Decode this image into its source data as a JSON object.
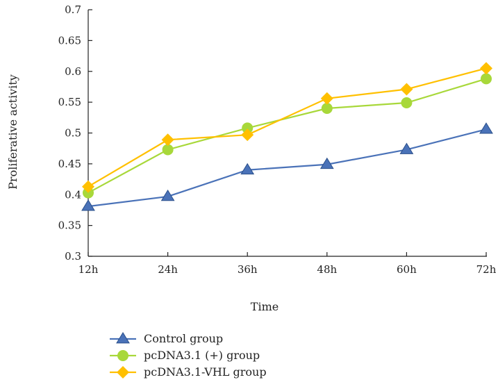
{
  "chart_data": {
    "type": "line",
    "title": "",
    "xlabel": "Time",
    "ylabel": "Proliferative activity",
    "categories": [
      "12h",
      "24h",
      "36h",
      "48h",
      "60h",
      "72h"
    ],
    "ylim": [
      0.3,
      0.7
    ],
    "yticks": [
      "0.3",
      "0.35",
      "0.4",
      "0.45",
      "0.5",
      "0.55",
      "0.6",
      "0.65",
      "0.7"
    ],
    "grid": false,
    "legend_position": "bottom-left",
    "series": [
      {
        "name": "Control group",
        "values": [
          0.381,
          0.397,
          0.44,
          0.449,
          0.473,
          0.506
        ],
        "color": "#4a72b8",
        "marker": "triangle"
      },
      {
        "name": "pcDNA3.1 (+) group",
        "values": [
          0.403,
          0.473,
          0.508,
          0.54,
          0.549,
          0.588
        ],
        "color": "#a8d83a",
        "marker": "circle"
      },
      {
        "name": "pcDNA3.1-VHL group",
        "values": [
          0.413,
          0.489,
          0.497,
          0.556,
          0.571,
          0.605
        ],
        "color": "#ffc000",
        "marker": "diamond"
      }
    ]
  }
}
